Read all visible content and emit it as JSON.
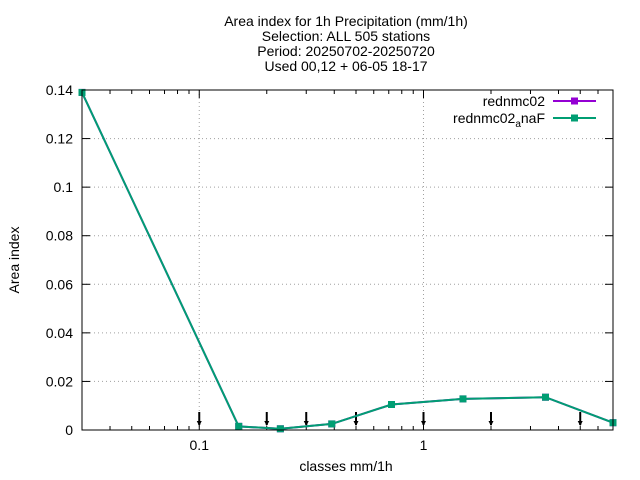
{
  "chart_data": {
    "type": "line",
    "title_lines": [
      "Area index  for 1h Precipitation (mm/1h)",
      "Selection: ALL    505 stations",
      "Period: 20250702-20250720",
      "Used 00,12 + 06-05 18-17"
    ],
    "xlabel": "classes mm/1h",
    "ylabel": "Area index",
    "x_scale": "log",
    "xlim": [
      0.03,
      7
    ],
    "ylim": [
      0,
      0.14
    ],
    "x_ticks": [
      0.1,
      1
    ],
    "x_tick_labels": [
      "0.1",
      "1"
    ],
    "y_ticks": [
      0,
      0.02,
      0.04,
      0.06,
      0.08,
      0.1,
      0.12,
      0.14
    ],
    "y_tick_labels": [
      "0",
      "0.02",
      "0.04",
      "0.06",
      "0.08",
      "0.1",
      "0.12",
      "0.14"
    ],
    "grid": true,
    "legend_position": "top-right",
    "series": [
      {
        "name": "rednmc02",
        "color": "#9400d3",
        "x": [
          0.03,
          0.15,
          0.23,
          0.39,
          0.72,
          1.5,
          3.5,
          7
        ],
        "values": [
          0.139,
          0.0015,
          0.0005,
          0.0025,
          0.0105,
          0.0128,
          0.0135,
          0.003
        ]
      },
      {
        "name": "rednmc02",
        "name_subscript": "a",
        "name_suffix": "naF",
        "color": "#009e73",
        "x": [
          0.03,
          0.15,
          0.23,
          0.39,
          0.72,
          1.5,
          3.5,
          7
        ],
        "values": [
          0.139,
          0.0015,
          0.0005,
          0.0025,
          0.0105,
          0.0128,
          0.0135,
          0.003
        ]
      }
    ],
    "markers_x": [
      0.1,
      0.2,
      0.3,
      0.5,
      1,
      2,
      5
    ]
  }
}
